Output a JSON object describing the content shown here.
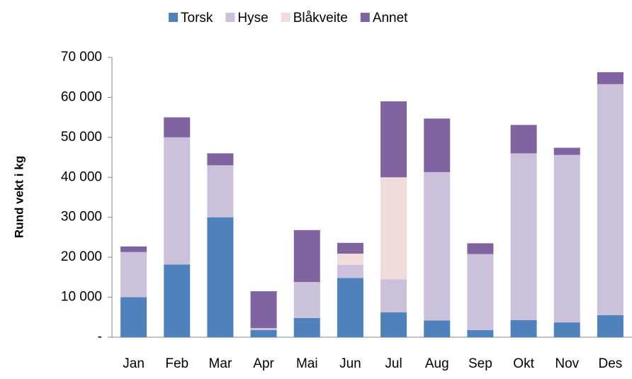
{
  "chart_data": {
    "type": "stacked_bar",
    "y_label": "Rund vekt i kg",
    "categories": [
      "Jan",
      "Feb",
      "Mar",
      "Apr",
      "Mai",
      "Jun",
      "Jul",
      "Aug",
      "Sep",
      "Okt",
      "Nov",
      "Des"
    ],
    "series": [
      {
        "name": "Torsk",
        "color": "#4f81bd",
        "values": [
          10000,
          18200,
          30000,
          1800,
          4800,
          14800,
          6200,
          4200,
          1800,
          4300,
          3700,
          5500
        ]
      },
      {
        "name": "Hyse",
        "color": "#ccc1da",
        "values": [
          11300,
          31800,
          13000,
          500,
          9000,
          3300,
          8300,
          37100,
          19000,
          41700,
          41900,
          57800
        ]
      },
      {
        "name": "Blåkveite",
        "color": "#f2dcdb",
        "values": [
          0,
          0,
          0,
          0,
          0,
          2800,
          25500,
          0,
          0,
          0,
          0,
          0
        ]
      },
      {
        "name": "Annet",
        "color": "#8064a2",
        "values": [
          1400,
          5000,
          3000,
          9200,
          13000,
          2700,
          19000,
          13400,
          2700,
          7100,
          1800,
          3000
        ]
      }
    ],
    "ylim": [
      0,
      70000
    ],
    "yticks": [
      {
        "value": 0,
        "label": "-"
      },
      {
        "value": 10000,
        "label": "10 000"
      },
      {
        "value": 20000,
        "label": "20 000"
      },
      {
        "value": 30000,
        "label": "30 000"
      },
      {
        "value": 40000,
        "label": "40 000"
      },
      {
        "value": 50000,
        "label": "50 000"
      },
      {
        "value": 60000,
        "label": "60 000"
      },
      {
        "value": 70000,
        "label": "70 000"
      }
    ],
    "grid": false,
    "legend": "top"
  }
}
